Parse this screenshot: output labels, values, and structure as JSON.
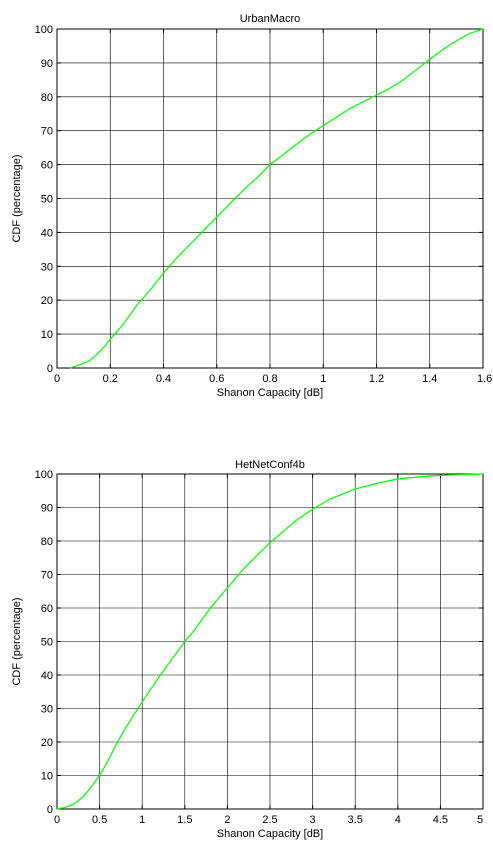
{
  "colors": {
    "curve": "#00ff00",
    "axis": "#000000",
    "background": "#ffffff"
  },
  "chart_data": [
    {
      "type": "line",
      "title": "UrbanMacro",
      "xlabel": "Shanon Capacity [dB]",
      "ylabel": "CDF (percentage)",
      "xlim": [
        0,
        1.6
      ],
      "ylim": [
        0,
        100
      ],
      "xticks": [
        0,
        0.2,
        0.4,
        0.6,
        0.8,
        1,
        1.2,
        1.4,
        1.6
      ],
      "xtick_labels": [
        "0",
        "0.2",
        "0.4",
        "0.6",
        "0.8",
        "1",
        "1.2",
        "1.4",
        "1.6"
      ],
      "yticks": [
        0,
        10,
        20,
        30,
        40,
        50,
        60,
        70,
        80,
        90,
        100
      ],
      "ytick_labels": [
        "0",
        "10",
        "20",
        "30",
        "40",
        "50",
        "60",
        "70",
        "80",
        "90",
        "100"
      ],
      "grid": true,
      "series": [
        {
          "color": "#00ff00",
          "x": [
            0.05,
            0.08,
            0.12,
            0.15,
            0.18,
            0.2,
            0.25,
            0.3,
            0.35,
            0.4,
            0.45,
            0.5,
            0.55,
            0.6,
            0.65,
            0.7,
            0.75,
            0.8,
            0.85,
            0.9,
            0.95,
            1.0,
            1.05,
            1.1,
            1.15,
            1.2,
            1.25,
            1.3,
            1.35,
            1.4,
            1.45,
            1.5,
            1.55,
            1.6
          ],
          "y": [
            0,
            0.8,
            2,
            4,
            6.5,
            8.5,
            13,
            18.5,
            23,
            28,
            32.5,
            36.5,
            40.5,
            44.5,
            48.5,
            52.5,
            56,
            60,
            63,
            66,
            69,
            71.5,
            74,
            76.5,
            78.5,
            80.5,
            82.5,
            85,
            88,
            91,
            94,
            96.5,
            98.7,
            100
          ]
        }
      ]
    },
    {
      "type": "line",
      "title": "HetNetConf4b",
      "xlabel": "Shanon Capacity [dB]",
      "ylabel": "CDF (percentage)",
      "xlim": [
        0,
        5
      ],
      "ylim": [
        0,
        100
      ],
      "xticks": [
        0,
        0.5,
        1,
        1.5,
        2,
        2.5,
        3,
        3.5,
        4,
        4.5,
        5
      ],
      "xtick_labels": [
        "0",
        "0.5",
        "1",
        "1.5",
        "2",
        "2.5",
        "3",
        "3.5",
        "4",
        "4.5",
        "5"
      ],
      "yticks": [
        0,
        10,
        20,
        30,
        40,
        50,
        60,
        70,
        80,
        90,
        100
      ],
      "ytick_labels": [
        "0",
        "10",
        "20",
        "30",
        "40",
        "50",
        "60",
        "70",
        "80",
        "90",
        "100"
      ],
      "grid": true,
      "series": [
        {
          "color": "#00ff00",
          "x": [
            0,
            0.1,
            0.2,
            0.3,
            0.4,
            0.5,
            0.6,
            0.7,
            0.8,
            0.9,
            1.0,
            1.2,
            1.4,
            1.5,
            1.6,
            1.8,
            2.0,
            2.2,
            2.5,
            2.8,
            3.0,
            3.2,
            3.5,
            3.8,
            4.0,
            4.3,
            4.6,
            5.0
          ],
          "y": [
            0,
            0.5,
            1.5,
            3.5,
            6.5,
            10,
            14.5,
            19.5,
            24,
            28,
            32,
            39.5,
            46.5,
            50,
            53,
            60,
            66,
            72,
            79.5,
            86,
            89.5,
            92.5,
            95.5,
            97.5,
            98.5,
            99.3,
            99.7,
            100
          ]
        }
      ]
    }
  ]
}
